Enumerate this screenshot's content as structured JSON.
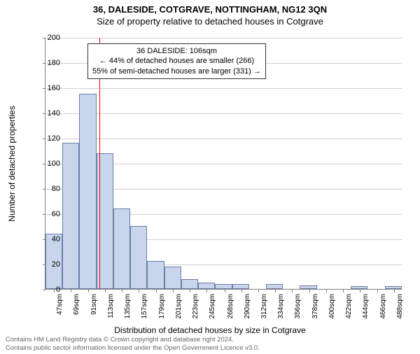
{
  "title_line1": "36, DALESIDE, COTGRAVE, NOTTINGHAM, NG12 3QN",
  "title_line2": "Size of property relative to detached houses in Cotgrave",
  "ylabel": "Number of detached properties",
  "xlabel": "Distribution of detached houses by size in Cotgrave",
  "footer_line1": "Contains HM Land Registry data © Crown copyright and database right 2024.",
  "footer_line2": "Contains public sector information licensed under the Open Government Licence v3.0.",
  "annotation": {
    "line1": "36 DALESIDE: 106sqm",
    "line2": "← 44% of detached houses are smaller (266)",
    "line3": "55% of semi-detached houses are larger (331) →",
    "box_border_color": "#333333",
    "box_bg": "#ffffff",
    "fontsize": 11
  },
  "reference_line": {
    "x_value": 106,
    "color": "#ff0000",
    "width": 1
  },
  "chart": {
    "type": "histogram",
    "ylim": [
      0,
      200
    ],
    "ytick_step": 20,
    "xlim": [
      36,
      499
    ],
    "grid_color": "#d0d0d0",
    "axis_color": "#808080",
    "background_color": "#ffffff",
    "bar_fill": "#c9d5ec",
    "bar_stroke": "#6a7fa8",
    "bar_width_sqm": 22,
    "xtick_values": [
      47,
      69,
      91,
      113,
      135,
      157,
      179,
      201,
      223,
      245,
      268,
      290,
      312,
      334,
      356,
      378,
      400,
      422,
      444,
      466,
      488
    ],
    "xtick_unit": "sqm",
    "bars": [
      {
        "start": 36,
        "value": 44
      },
      {
        "start": 58,
        "value": 116
      },
      {
        "start": 80,
        "value": 155
      },
      {
        "start": 102,
        "value": 108
      },
      {
        "start": 124,
        "value": 64
      },
      {
        "start": 146,
        "value": 50
      },
      {
        "start": 168,
        "value": 22
      },
      {
        "start": 190,
        "value": 18
      },
      {
        "start": 212,
        "value": 8
      },
      {
        "start": 234,
        "value": 5
      },
      {
        "start": 256,
        "value": 4
      },
      {
        "start": 278,
        "value": 4
      },
      {
        "start": 300,
        "value": 0
      },
      {
        "start": 322,
        "value": 4
      },
      {
        "start": 344,
        "value": 0
      },
      {
        "start": 366,
        "value": 3
      },
      {
        "start": 388,
        "value": 0
      },
      {
        "start": 410,
        "value": 0
      },
      {
        "start": 432,
        "value": 2
      },
      {
        "start": 454,
        "value": 0
      },
      {
        "start": 476,
        "value": 2
      }
    ]
  },
  "fonts": {
    "title_size": 13,
    "label_size": 12,
    "tick_size": 11,
    "xtick_size": 10
  }
}
